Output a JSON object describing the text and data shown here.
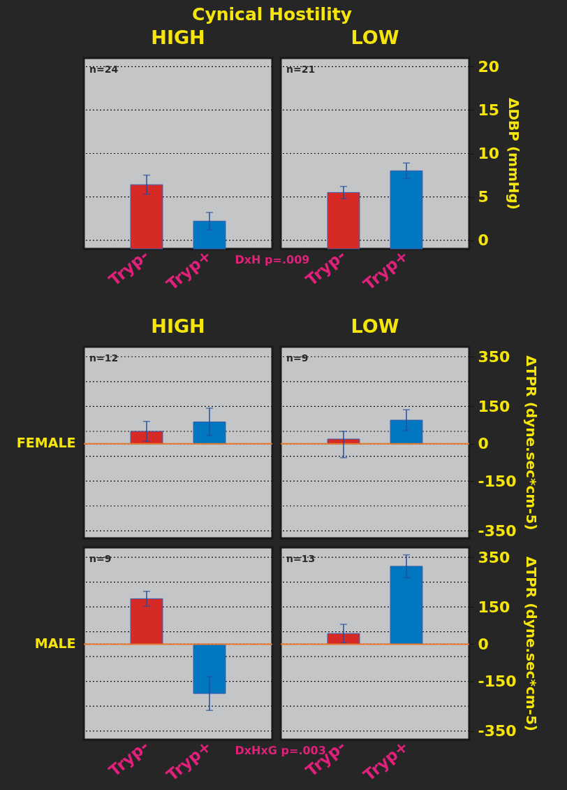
{
  "chart_data": [
    {
      "type": "bar",
      "title": "Cynical Hostility",
      "subtitle": "HIGH",
      "categories": [
        "Tryp-",
        "Tryp+"
      ],
      "values": [
        7.4,
        3.2
      ],
      "base": [
        -1,
        -1
      ],
      "errors": [
        1.1,
        1.0
      ],
      "colors": [
        "#d62a26",
        "#0077c0"
      ],
      "ylim": [
        -1,
        21
      ],
      "yticks": [
        0,
        5,
        10,
        15,
        20
      ],
      "grid": "y",
      "tick_labels": "x",
      "annotations": [
        "n=24",
        "DxH p=.009"
      ]
    },
    {
      "type": "bar",
      "title": "LOW",
      "ylabel": "ΔDBP (mmHg)",
      "categories": [
        "Tryp-",
        "Tryp+"
      ],
      "values": [
        6.5,
        9.0
      ],
      "base": [
        -1,
        -1
      ],
      "errors": [
        0.7,
        0.9
      ],
      "colors": [
        "#d62a26",
        "#0077c0"
      ],
      "ylim": [
        -1,
        21
      ],
      "yticks": [
        0,
        5,
        10,
        15,
        20
      ],
      "grid": "y",
      "annotations": [
        "n=21"
      ]
    },
    {
      "type": "bar",
      "title": "HIGH",
      "ylabel": "FEMALE",
      "categories": [
        null,
        null
      ],
      "values": [
        50,
        88
      ],
      "errors": [
        40,
        55
      ],
      "colors": [
        "#d62a26",
        "#0077c0"
      ],
      "ylim": [
        -380,
        390
      ],
      "yticks": [
        350,
        {
          "value": 250,
          "label": null
        },
        150,
        {
          "value": 50,
          "label": null
        },
        0,
        {
          "value": -50,
          "label": null
        },
        -150,
        {
          "value": -250,
          "label": null
        },
        -350
      ],
      "grid": "y",
      "tick_labels": false,
      "ref_lines": [
        {
          "axis": "y",
          "value": 0,
          "color": "#e8772a"
        }
      ],
      "annotations": [
        "n=12"
      ]
    },
    {
      "type": "bar",
      "title": "LOW",
      "ylabel": "ΔTPR (dyne.sec*cm-5)",
      "categories": [
        null,
        null
      ],
      "values": [
        19,
        95
      ],
      "errors": [
        [
          -56,
          50
        ],
        42
      ],
      "colors": [
        "#d62a26",
        "#0077c0"
      ],
      "ylim": [
        -380,
        390
      ],
      "yticks": [
        350,
        {
          "value": 250,
          "label": null
        },
        150,
        {
          "value": 50,
          "label": null
        },
        0,
        {
          "value": -50,
          "label": null
        },
        -150,
        {
          "value": -250,
          "label": null
        },
        -350
      ],
      "grid": "y",
      "tick_labels": "y",
      "ref_lines": [
        {
          "axis": "y",
          "value": 0,
          "color": "#e8772a"
        }
      ],
      "annotations": [
        "n=9"
      ]
    },
    {
      "type": "bar",
      "ylabel": "MALE",
      "categories": [
        "Tryp-",
        "Tryp+"
      ],
      "values": [
        183,
        -199
      ],
      "errors": [
        30,
        68
      ],
      "colors": [
        "#d62a26",
        "#0077c0"
      ],
      "ylim": [
        -385,
        390
      ],
      "yticks": [
        350,
        {
          "value": 250,
          "label": null
        },
        150,
        {
          "value": 50,
          "label": null
        },
        0,
        {
          "value": -50,
          "label": null
        },
        -150,
        {
          "value": -250,
          "label": null
        },
        -350
      ],
      "grid": "y",
      "tick_labels": "x",
      "ref_lines": [
        {
          "axis": "y",
          "value": 0,
          "color": "#e8772a"
        }
      ],
      "annotations": [
        "n=9",
        "DxHxG p=.003"
      ]
    },
    {
      "type": "bar",
      "ylabel": "ΔTPR (dyne.sec*cm-5)",
      "categories": [
        "Tryp-",
        "Tryp+"
      ],
      "values": [
        43,
        314
      ],
      "errors": [
        37,
        46
      ],
      "colors": [
        "#d62a26",
        "#0077c0"
      ],
      "ylim": [
        -385,
        390
      ],
      "yticks": [
        350,
        {
          "value": 250,
          "label": null
        },
        150,
        {
          "value": 50,
          "label": null
        },
        0,
        {
          "value": -50,
          "label": null
        },
        -150,
        {
          "value": -250,
          "label": null
        },
        -350
      ],
      "grid": "y",
      "ref_lines": [
        {
          "axis": "y",
          "value": 0,
          "color": "#e8772a"
        }
      ],
      "annotations": [
        "n=13"
      ]
    }
  ]
}
